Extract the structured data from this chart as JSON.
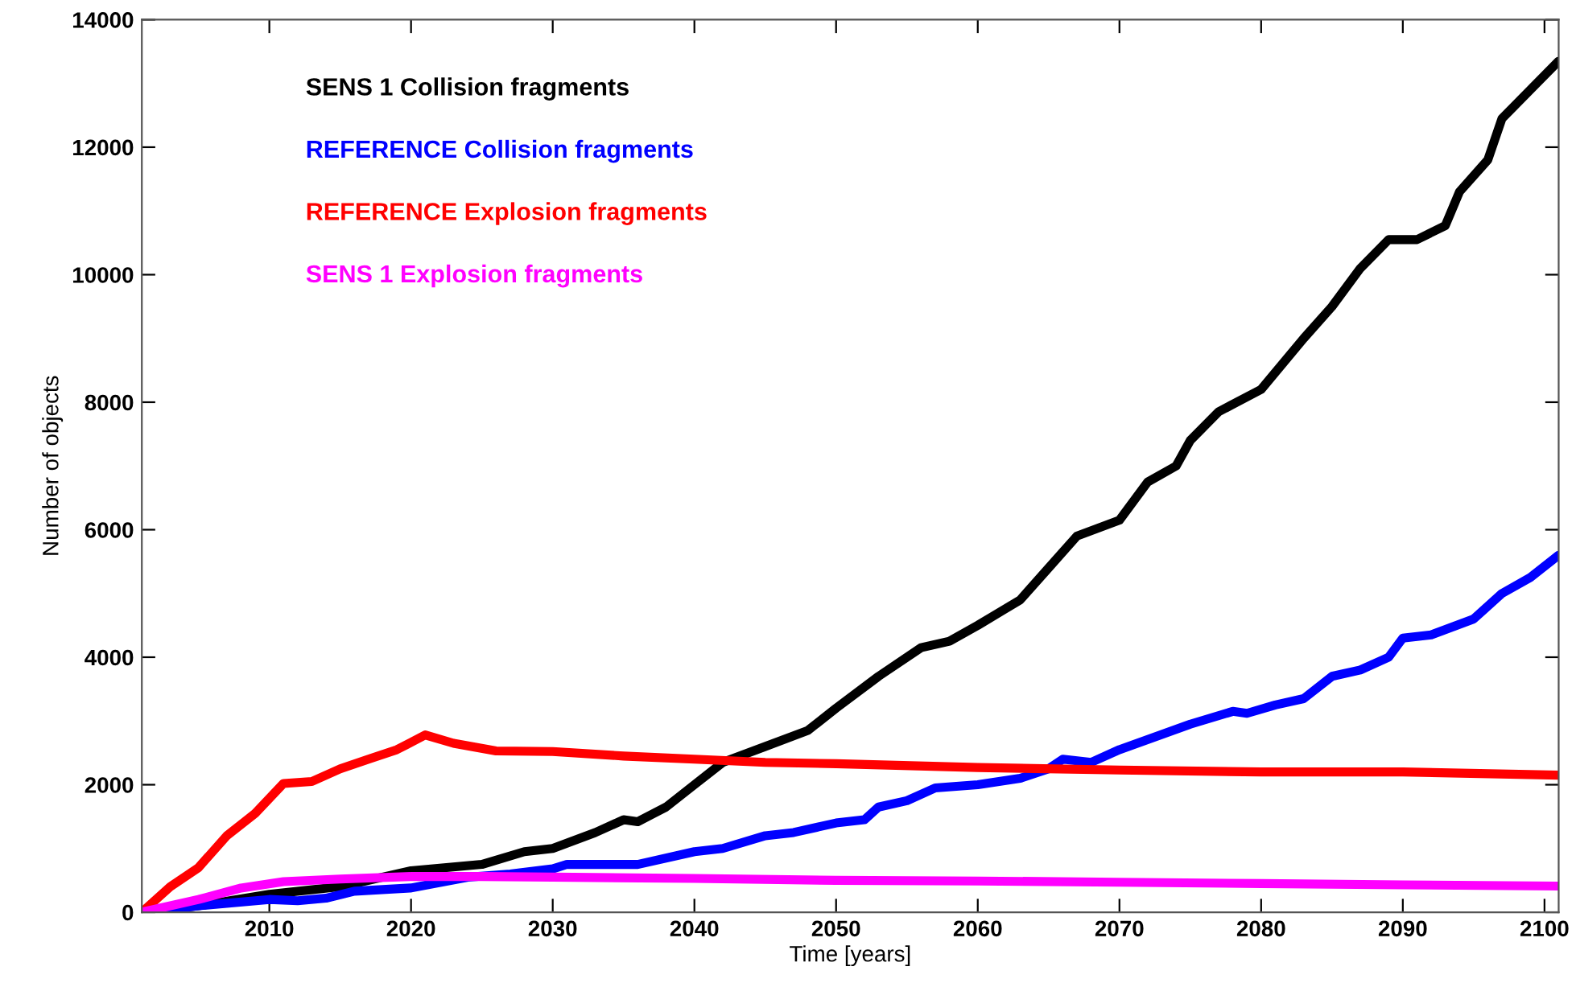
{
  "chart_data": {
    "type": "line",
    "xlabel": "Time [years]",
    "ylabel": "Number of objects",
    "xlim": [
      2001,
      2101
    ],
    "ylim": [
      0,
      14000
    ],
    "xticks": [
      2010,
      2020,
      2030,
      2040,
      2050,
      2060,
      2070,
      2080,
      2090,
      2100
    ],
    "yticks": [
      0,
      2000,
      4000,
      6000,
      8000,
      10000,
      12000,
      14000
    ],
    "grid": false,
    "legend": "top left",
    "line_style": "solid",
    "marker": "none",
    "series": [
      {
        "name": "SENS 1 Collision fragments",
        "color": "#000000",
        "x": [
          2001,
          2005,
          2010,
          2015,
          2020,
          2025,
          2028,
          2030,
          2033,
          2035,
          2036,
          2038,
          2040,
          2042,
          2045,
          2048,
          2050,
          2053,
          2056,
          2058,
          2060,
          2063,
          2065,
          2067,
          2070,
          2072,
          2074,
          2075,
          2077,
          2080,
          2083,
          2085,
          2087,
          2089,
          2091,
          2093,
          2094,
          2096,
          2097,
          2099,
          2101
        ],
        "values": [
          0,
          100,
          280,
          400,
          650,
          750,
          950,
          1000,
          1250,
          1450,
          1420,
          1650,
          2000,
          2350,
          2600,
          2850,
          3200,
          3700,
          4150,
          4250,
          4500,
          4900,
          5400,
          5900,
          6150,
          6750,
          7000,
          7400,
          7850,
          8200,
          9000,
          9500,
          10100,
          10550,
          10550,
          10770,
          11300,
          11800,
          12450,
          12900,
          13350
        ]
      },
      {
        "name": "REFERENCE Collision fragments",
        "color": "#0000ff",
        "x": [
          2001,
          2005,
          2010,
          2012,
          2014,
          2016,
          2020,
          2024,
          2027,
          2030,
          2031,
          2036,
          2040,
          2042,
          2045,
          2047,
          2050,
          2052,
          2053,
          2055,
          2057,
          2060,
          2063,
          2065,
          2066,
          2068,
          2070,
          2075,
          2078,
          2079,
          2081,
          2083,
          2085,
          2087,
          2089,
          2090,
          2092,
          2095,
          2097,
          2099,
          2101
        ],
        "values": [
          0,
          100,
          200,
          180,
          220,
          330,
          380,
          550,
          600,
          680,
          750,
          750,
          950,
          1000,
          1200,
          1250,
          1400,
          1450,
          1650,
          1750,
          1950,
          2000,
          2100,
          2250,
          2400,
          2350,
          2550,
          2950,
          3150,
          3120,
          3250,
          3350,
          3700,
          3800,
          4000,
          4300,
          4350,
          4600,
          5000,
          5250,
          5600
        ]
      },
      {
        "name": "REFERENCE Explosion fragments",
        "color": "#ff0000",
        "x": [
          2001,
          2003,
          2005,
          2007,
          2009,
          2011,
          2013,
          2015,
          2017,
          2019,
          2021,
          2023,
          2026,
          2030,
          2035,
          2040,
          2045,
          2050,
          2060,
          2070,
          2080,
          2090,
          2101
        ],
        "values": [
          0,
          400,
          700,
          1200,
          1550,
          2020,
          2050,
          2250,
          2400,
          2550,
          2780,
          2650,
          2530,
          2520,
          2450,
          2400,
          2350,
          2330,
          2270,
          2230,
          2200,
          2200,
          2150
        ]
      },
      {
        "name": "SENS 1 Explosion fragments",
        "color": "#ff00ff",
        "x": [
          2001,
          2005,
          2008,
          2011,
          2015,
          2020,
          2025,
          2030,
          2040,
          2050,
          2060,
          2070,
          2080,
          2090,
          2101
        ],
        "values": [
          0,
          200,
          380,
          480,
          520,
          560,
          560,
          550,
          530,
          500,
          490,
          470,
          450,
          430,
          410
        ]
      }
    ]
  }
}
